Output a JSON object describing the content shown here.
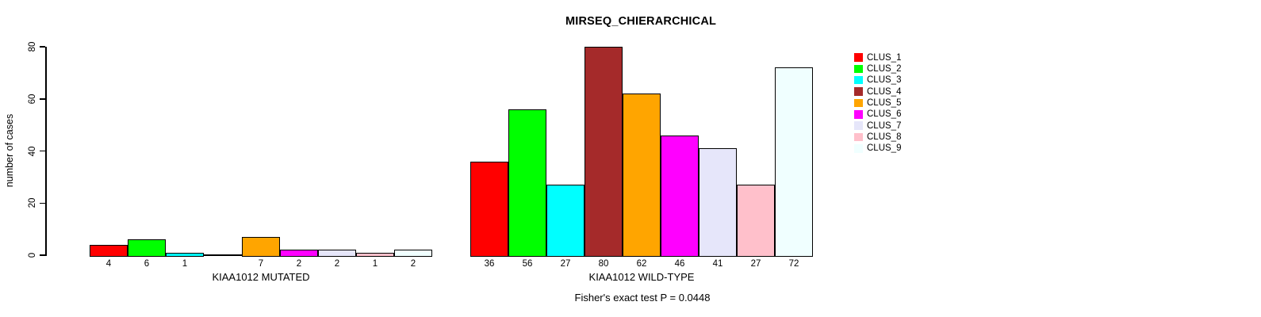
{
  "chart_data": {
    "type": "bar",
    "title": "MIRSEQ_CHIERARCHICAL",
    "ylabel": "number of cases",
    "ylim": [
      0,
      80
    ],
    "yticks": [
      0,
      20,
      40,
      60,
      80
    ],
    "grid": false,
    "legend_position": "right",
    "categories": [
      "CLUS_1",
      "CLUS_2",
      "CLUS_3",
      "CLUS_4",
      "CLUS_5",
      "CLUS_6",
      "CLUS_7",
      "CLUS_8",
      "CLUS_9"
    ],
    "colors": [
      "#ff0000",
      "#00ff00",
      "#00ffff",
      "#a52a2a",
      "#ffa500",
      "#ff00ff",
      "#e6e6fa",
      "#ffc0cb",
      "#f0ffff"
    ],
    "series": [
      {
        "name": "KIAA1012 MUTATED",
        "values": [
          4,
          6,
          1,
          0,
          7,
          2,
          2,
          1,
          2
        ]
      },
      {
        "name": "KIAA1012 WILD-TYPE",
        "values": [
          36,
          56,
          27,
          80,
          62,
          46,
          41,
          27,
          72
        ]
      }
    ],
    "annotation": "Fisher's exact test P = 0.0448"
  }
}
